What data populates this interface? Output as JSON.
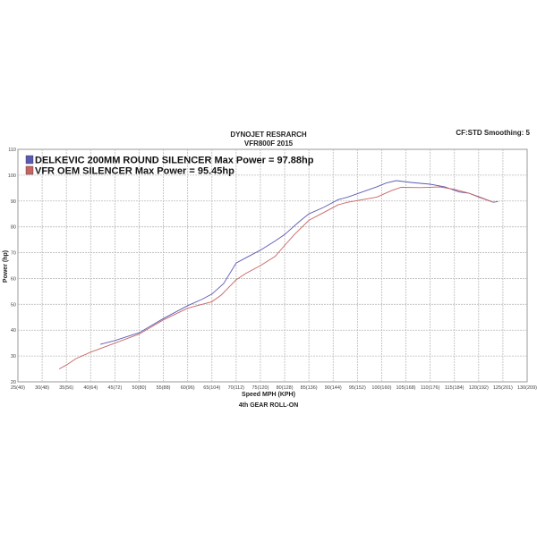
{
  "chart_data": {
    "type": "line",
    "title": "DYNOJET RESRARCH",
    "subtitle": "VFR800F 2015",
    "corner_note": "CF:STD Smoothing: 5",
    "xlabel": "Speed MPH (KPH)",
    "xlabel2": "4th GEAR ROLL-ON",
    "ylabel": "Power (hp)",
    "xlim": [
      25,
      130
    ],
    "ylim": [
      20,
      110
    ],
    "grid": true,
    "legend_position": "top-left",
    "x_ticks": [
      25,
      30,
      35,
      40,
      45,
      50,
      55,
      60,
      65,
      70,
      75,
      80,
      85,
      90,
      95,
      100,
      105,
      110,
      115,
      120,
      125,
      130
    ],
    "x_tick_labels": [
      "25(40)",
      "30(48)",
      "35(56)",
      "40(64)",
      "45(72)",
      "50(80)",
      "55(88)",
      "60(96)",
      "65(104)",
      "70(112)",
      "75(120)",
      "80(128)",
      "85(136)",
      "90(144)",
      "95(152)",
      "100(160)",
      "105(168)",
      "110(176)",
      "115(184)",
      "120(192)",
      "125(201)",
      "130(209)"
    ],
    "y_ticks": [
      20,
      30,
      40,
      50,
      60,
      70,
      80,
      90,
      100,
      110
    ],
    "y_tick_labels": [
      "20",
      "30",
      "40",
      "50",
      "60",
      "70",
      "80",
      "90",
      "100",
      "110"
    ],
    "series": [
      {
        "name": "DELKEVIC 200MM ROUND SILENCER Max Power = 97.88hp",
        "color": "#5a5ab4",
        "x": [
          42,
          45,
          50,
          55,
          60,
          63,
          65,
          67.4,
          70,
          72,
          75,
          78,
          80,
          83,
          85,
          88,
          91,
          93,
          96,
          99,
          101,
          103,
          106,
          110,
          113,
          116,
          118,
          121,
          123,
          124
        ],
        "y": [
          34.5,
          36,
          39,
          44.5,
          49.5,
          52,
          54,
          58,
          66,
          68,
          71,
          74.5,
          77,
          82,
          85,
          87.5,
          90.5,
          91.5,
          93.5,
          95.5,
          97,
          97.88,
          97.2,
          96.5,
          95.5,
          93.5,
          93,
          91,
          89.5,
          89.8
        ]
      },
      {
        "name": "VFR OEM SILENCER Max Power = 95.45hp",
        "color": "#c86464",
        "x": [
          33.5,
          35,
          37,
          40,
          45,
          50,
          55,
          60,
          63,
          65,
          67,
          70,
          72,
          75,
          78,
          80,
          82,
          85,
          88,
          91,
          93,
          96,
          99,
          102,
          104,
          108,
          112,
          115,
          118,
          120,
          123
        ],
        "y": [
          25,
          26.5,
          29,
          31.5,
          35,
          38.5,
          44,
          48.5,
          50,
          51,
          53.7,
          59.5,
          62,
          65,
          68.5,
          72.8,
          77,
          82.5,
          85.5,
          88.5,
          89.5,
          90.5,
          91.5,
          94,
          95.3,
          95.2,
          95.45,
          94.5,
          93,
          91.5,
          89.5
        ]
      }
    ]
  }
}
